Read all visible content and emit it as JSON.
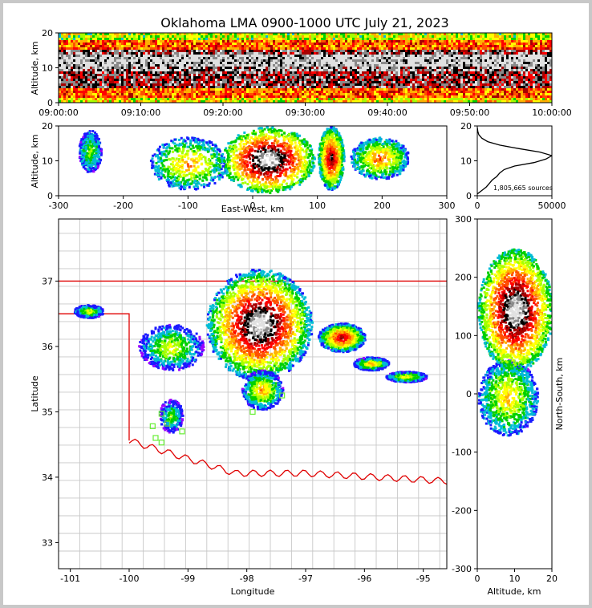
{
  "chart_data": [
    {
      "panel": "time-height",
      "type": "heatmap",
      "title": "Oklahoma LMA 0900-1000 UTC July 21, 2023",
      "xlabel": "",
      "ylabel": "Altitude, km",
      "xlim": [
        "09:00:00",
        "10:00:00"
      ],
      "ylim": [
        0,
        20
      ],
      "x_ticks": [
        "09:00:00",
        "09:10:00",
        "09:20:00",
        "09:30:00",
        "09:40:00",
        "09:50:00",
        "10:00:00"
      ],
      "y_ticks": [
        0,
        10,
        20
      ],
      "density_bands": [
        {
          "altitude": [
            0,
            1.5
          ],
          "level": 0.45
        },
        {
          "altitude": [
            1.5,
            4
          ],
          "level": 0.6
        },
        {
          "altitude": [
            4,
            9
          ],
          "level": 0.82
        },
        {
          "altitude": [
            9,
            10.5
          ],
          "level": 0.9
        },
        {
          "altitude": [
            10.5,
            13.5
          ],
          "level": 0.98
        },
        {
          "altitude": [
            13.5,
            15
          ],
          "level": 0.85
        },
        {
          "altitude": [
            15,
            18
          ],
          "level": 0.6
        },
        {
          "altitude": [
            18,
            20
          ],
          "level": 0.4
        }
      ]
    },
    {
      "panel": "east-west-altitude",
      "type": "heatmap",
      "xlabel": "East-West, km",
      "ylabel": "Altitude, km",
      "xlim": [
        -300,
        300
      ],
      "ylim": [
        0,
        20
      ],
      "x_ticks": [
        -300,
        -200,
        -100,
        0,
        100,
        200,
        300
      ],
      "y_ticks": [
        0,
        10,
        20
      ],
      "clusters": [
        {
          "x": [
            -270,
            -235
          ],
          "z": [
            7,
            19
          ],
          "peak": 0.3
        },
        {
          "x": [
            -160,
            -40
          ],
          "z": [
            2,
            17
          ],
          "peak": 0.5
        },
        {
          "x": [
            -50,
            95
          ],
          "z": [
            1,
            20
          ],
          "peak": 1.0
        },
        {
          "x": [
            100,
            140
          ],
          "z": [
            2,
            20
          ],
          "peak": 0.8
        },
        {
          "x": [
            150,
            240
          ],
          "z": [
            5,
            17
          ],
          "peak": 0.55
        }
      ]
    },
    {
      "panel": "altitude-histogram",
      "type": "line",
      "xlim": [
        0,
        50000
      ],
      "ylim": [
        0,
        20
      ],
      "x_ticks": [
        0,
        50000
      ],
      "y_ticks": [
        0,
        10,
        20
      ],
      "annotation": "1,805,665 sources",
      "points": [
        {
          "count": 0,
          "altitude": 0.5
        },
        {
          "count": 3000,
          "altitude": 1.5
        },
        {
          "count": 6000,
          "altitude": 2.5
        },
        {
          "count": 8000,
          "altitude": 3.5
        },
        {
          "count": 10000,
          "altitude": 4.5
        },
        {
          "count": 13000,
          "altitude": 5.5
        },
        {
          "count": 15000,
          "altitude": 6.5
        },
        {
          "count": 18000,
          "altitude": 7.5
        },
        {
          "count": 25000,
          "altitude": 8.5
        },
        {
          "count": 38000,
          "altitude": 9.5
        },
        {
          "count": 46000,
          "altitude": 10.5
        },
        {
          "count": 50000,
          "altitude": 11.5
        },
        {
          "count": 42000,
          "altitude": 12.5
        },
        {
          "count": 28000,
          "altitude": 13.5
        },
        {
          "count": 15000,
          "altitude": 14.5
        },
        {
          "count": 7000,
          "altitude": 15.5
        },
        {
          "count": 3000,
          "altitude": 16.5
        },
        {
          "count": 1000,
          "altitude": 17.5
        },
        {
          "count": 300,
          "altitude": 18.5
        },
        {
          "count": 50,
          "altitude": 19.5
        }
      ]
    },
    {
      "panel": "plan-view",
      "type": "heatmap",
      "xlabel": "Longitude",
      "ylabel": "Latitude",
      "xlim": [
        -101.2,
        -94.6
      ],
      "ylim": [
        32.6,
        37.95
      ],
      "x_ticks": [
        -101,
        -100,
        -99,
        -98,
        -97,
        -96,
        -95
      ],
      "y_ticks": [
        33,
        34,
        35,
        36,
        37
      ],
      "clusters": [
        {
          "lon": -100.7,
          "lat": 36.55,
          "rx": 0.25,
          "ry": 0.1,
          "peak": 0.4
        },
        {
          "lon": -99.3,
          "lat": 36.0,
          "rx": 0.55,
          "ry": 0.35,
          "peak": 0.4
        },
        {
          "lon": -97.8,
          "lat": 36.35,
          "rx": 0.9,
          "ry": 0.85,
          "peak": 1.0
        },
        {
          "lon": -96.4,
          "lat": 36.15,
          "rx": 0.4,
          "ry": 0.22,
          "peak": 0.75
        },
        {
          "lon": -95.9,
          "lat": 35.75,
          "rx": 0.3,
          "ry": 0.1,
          "peak": 0.5
        },
        {
          "lon": -95.3,
          "lat": 35.55,
          "rx": 0.35,
          "ry": 0.08,
          "peak": 0.45
        },
        {
          "lon": -97.75,
          "lat": 35.35,
          "rx": 0.35,
          "ry": 0.3,
          "peak": 0.5
        },
        {
          "lon": -99.3,
          "lat": 34.95,
          "rx": 0.2,
          "ry": 0.25,
          "peak": 0.3
        }
      ],
      "stations": [
        {
          "lon": -99.45,
          "lat": 34.97
        },
        {
          "lon": -99.6,
          "lat": 34.78
        },
        {
          "lon": -99.35,
          "lat": 34.82
        },
        {
          "lon": -99.55,
          "lat": 34.6
        },
        {
          "lon": -99.45,
          "lat": 34.53
        },
        {
          "lon": -99.1,
          "lat": 34.7
        },
        {
          "lon": -97.9,
          "lat": 35.0
        },
        {
          "lon": -97.4,
          "lat": 35.25
        }
      ]
    },
    {
      "panel": "altitude-north-south",
      "type": "heatmap",
      "xlabel": "Altitude, km",
      "ylabel": "North-South, km",
      "xlim": [
        0,
        20
      ],
      "ylim": [
        -300,
        300
      ],
      "x_ticks": [
        0,
        10,
        20
      ],
      "y_ticks": [
        -300,
        -200,
        -100,
        0,
        100,
        200,
        300
      ],
      "clusters": [
        {
          "y": [
            -70,
            60
          ],
          "z": [
            0,
            16
          ],
          "peak": 0.45
        },
        {
          "y": [
            40,
            250
          ],
          "z": [
            0,
            20
          ],
          "peak": 1.0
        }
      ]
    }
  ]
}
